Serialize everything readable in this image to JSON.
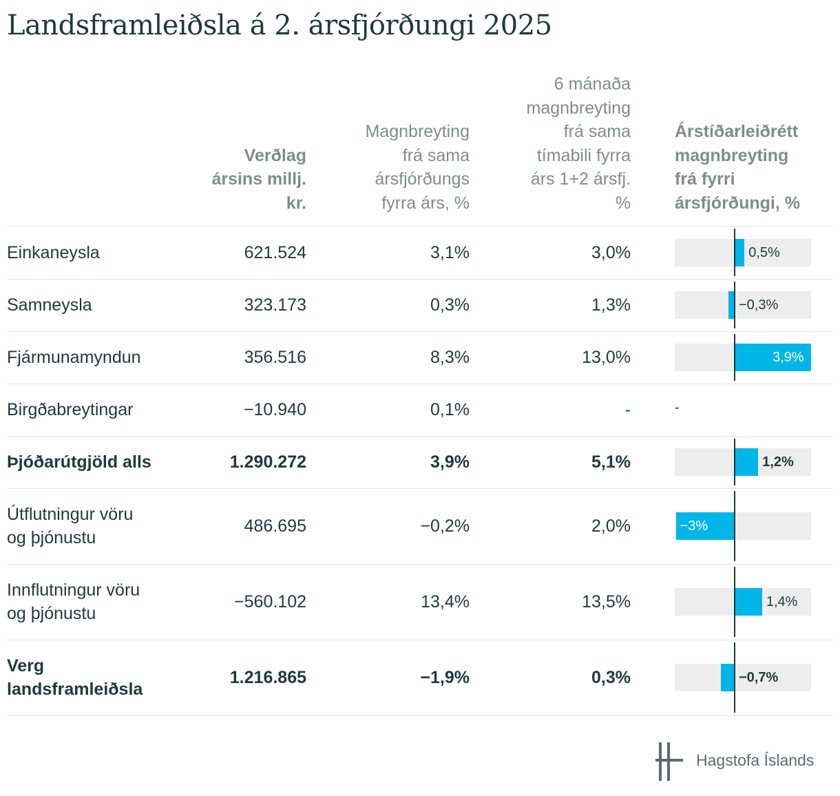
{
  "title": "Landsframleiðsla á 2. ársfjórðungi 2025",
  "columns": {
    "price": [
      "Verðlag",
      "ársins millj.",
      "kr."
    ],
    "annual": [
      "Magnbreyting",
      "frá sama",
      "ársfjórðungs",
      "fyrra árs, %"
    ],
    "halfyear": [
      "6 mánaða",
      "magnbreyting",
      "frá sama",
      "tímabili fyrra",
      "árs 1+2 ársfj.",
      "%"
    ],
    "seasonal": [
      "Árstíðarleiðrétt",
      "magnbreyting",
      "frá fyrri",
      "ársfjórðungi, %"
    ]
  },
  "rows": [
    {
      "name": [
        "Einkaneysla"
      ],
      "price": "621.524",
      "annual": "3,1%",
      "halfyear": "3,0%",
      "seasonal": 0.5,
      "seasonal_label": "0,5%",
      "bold": false
    },
    {
      "name": [
        "Samneysla"
      ],
      "price": "323.173",
      "annual": "0,3%",
      "halfyear": "1,3%",
      "seasonal": -0.3,
      "seasonal_label": "−0,3%",
      "bold": false
    },
    {
      "name": [
        "Fjármunamyndun"
      ],
      "price": "356.516",
      "annual": "8,3%",
      "halfyear": "13,0%",
      "seasonal": 3.9,
      "seasonal_label": "3,9%",
      "bold": false
    },
    {
      "name": [
        "Birgðabreytingar"
      ],
      "price": "−10.940",
      "annual": "0,1%",
      "halfyear": "-",
      "seasonal": null,
      "seasonal_label": "-",
      "bold": false
    },
    {
      "name": [
        "Þjóðarútgjöld alls"
      ],
      "price": "1.290.272",
      "annual": "3,9%",
      "halfyear": "5,1%",
      "seasonal": 1.2,
      "seasonal_label": "1,2%",
      "bold": true
    },
    {
      "name": [
        "Útflutningur vöru",
        "og þjónustu"
      ],
      "price": "486.695",
      "annual": "−0,2%",
      "halfyear": "2,0%",
      "seasonal": -3.0,
      "seasonal_label": "−3%",
      "bold": false
    },
    {
      "name": [
        "Innflutningur vöru",
        "og þjónustu"
      ],
      "price": "−560.102",
      "annual": "13,4%",
      "halfyear": "13,5%",
      "seasonal": 1.4,
      "seasonal_label": "1,4%",
      "bold": false
    },
    {
      "name": [
        "Verg",
        "landsframleiðsla"
      ],
      "price": "1.216.865",
      "annual": "−1,9%",
      "halfyear": "0,3%",
      "seasonal": -0.7,
      "seasonal_label": "−0,7%",
      "bold": true
    }
  ],
  "bar_scale": {
    "min": -3.0,
    "max": 3.9
  },
  "colors": {
    "bar": "#00b5e8",
    "track": "#ededed",
    "text": "#1d3a3f",
    "header": "#7f8c8f"
  },
  "logo": {
    "text": "Hagstofa Íslands",
    "icon": "hagstofa-logo-icon"
  }
}
